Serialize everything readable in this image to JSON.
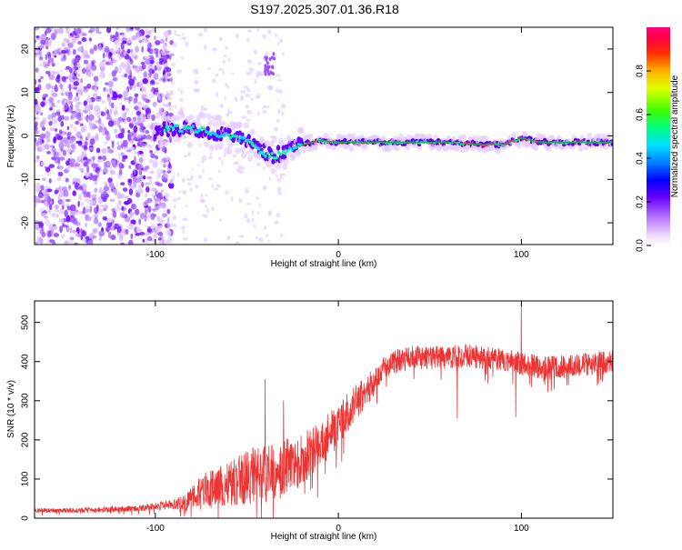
{
  "title": "S197.2025.307.01.36.R18",
  "chart_data": [
    {
      "type": "heatmap",
      "xlabel": "Height of straight line (km)",
      "ylabel": "Frequency (Hz)",
      "xlim": [
        -166,
        150
      ],
      "ylim": [
        -25,
        25
      ],
      "x_ticks": [
        -100,
        0,
        100
      ],
      "y_ticks": [
        -20,
        -10,
        0,
        10,
        20
      ],
      "colorbar": {
        "label": "Normalized spectral amplitude",
        "range": [
          0,
          1
        ],
        "ticks": [
          "0.0",
          "0.2",
          "0.4",
          "0.6",
          "0.8"
        ],
        "tick_values": [
          0.0,
          0.2,
          0.4,
          0.6,
          0.8
        ]
      },
      "dominant_frequency_track": [
        {
          "x": -100,
          "y": 0.5
        },
        {
          "x": -90,
          "y": 2.0
        },
        {
          "x": -80,
          "y": 1.5
        },
        {
          "x": -70,
          "y": 1.0
        },
        {
          "x": -60,
          "y": 0.0
        },
        {
          "x": -50,
          "y": -1.0
        },
        {
          "x": -40,
          "y": -4.0
        },
        {
          "x": -35,
          "y": -4.5
        },
        {
          "x": -30,
          "y": -4.0
        },
        {
          "x": -20,
          "y": -2.0
        },
        {
          "x": -10,
          "y": -1.0
        },
        {
          "x": 0,
          "y": -1.5
        },
        {
          "x": 10,
          "y": -1.5
        },
        {
          "x": 20,
          "y": -1.5
        },
        {
          "x": 40,
          "y": -1.5
        },
        {
          "x": 60,
          "y": -1.5
        },
        {
          "x": 80,
          "y": -2.0
        },
        {
          "x": 90,
          "y": -2.0
        },
        {
          "x": 100,
          "y": -0.5
        },
        {
          "x": 110,
          "y": -1.5
        },
        {
          "x": 130,
          "y": -1.5
        },
        {
          "x": 150,
          "y": -1.5
        }
      ]
    },
    {
      "type": "line",
      "xlabel": "Height of straight line (km)",
      "ylabel": "SNR (10 * v/v)",
      "xlim": [
        -166,
        150
      ],
      "ylim": [
        0,
        555
      ],
      "x_ticks": [
        -100,
        0,
        100
      ],
      "y_ticks": [
        0,
        100,
        200,
        300,
        400,
        500
      ],
      "color": "#ee3333",
      "series": [
        {
          "name": "SNR",
          "x": [
            -166,
            -150,
            -130,
            -110,
            -100,
            -90,
            -85,
            -80,
            -75,
            -70,
            -60,
            -50,
            -40,
            -30,
            -20,
            -10,
            0,
            10,
            20,
            25,
            30,
            40,
            50,
            60,
            70,
            80,
            90,
            95,
            100,
            105,
            110,
            120,
            130,
            140,
            150
          ],
          "values": [
            20,
            20,
            22,
            25,
            30,
            35,
            40,
            50,
            65,
            75,
            90,
            105,
            115,
            130,
            150,
            190,
            240,
            300,
            350,
            385,
            400,
            410,
            410,
            410,
            415,
            410,
            405,
            400,
            395,
            390,
            385,
            385,
            390,
            395,
            400
          ],
          "noise_amplitude": [
            6,
            6,
            7,
            8,
            10,
            12,
            20,
            35,
            45,
            50,
            60,
            70,
            75,
            70,
            65,
            60,
            55,
            45,
            35,
            30,
            30,
            30,
            30,
            30,
            30,
            30,
            30,
            30,
            30,
            30,
            30,
            30,
            30,
            30,
            30
          ]
        }
      ],
      "spikes": [
        {
          "x": -40,
          "y": 355
        },
        {
          "x": -30,
          "y": 300
        },
        {
          "x": 100,
          "y": 555
        },
        {
          "x": 97,
          "y": 258
        },
        {
          "x": 65,
          "y": 255
        }
      ]
    }
  ]
}
